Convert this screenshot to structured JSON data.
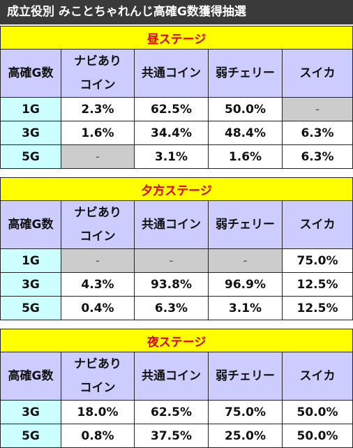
{
  "title": "成立役別 みことちゃれんじ高確G数獲得抽選",
  "columns": [
    "高確G数",
    "ナビあり\nコイン",
    "共通コイン",
    "弱チェリー",
    "スイカ"
  ],
  "sections": [
    {
      "name": "昼ステージ",
      "rows": [
        {
          "label": "1G",
          "cells": [
            "2.3%",
            "62.5%",
            "50.0%",
            "-"
          ],
          "gray": [
            false,
            false,
            false,
            true
          ]
        },
        {
          "label": "3G",
          "cells": [
            "1.6%",
            "34.4%",
            "48.4%",
            "6.3%"
          ],
          "gray": [
            false,
            false,
            false,
            false
          ]
        },
        {
          "label": "5G",
          "cells": [
            "-",
            "3.1%",
            "1.6%",
            "6.3%"
          ],
          "gray": [
            true,
            false,
            false,
            false
          ]
        }
      ]
    },
    {
      "name": "夕方ステージ",
      "rows": [
        {
          "label": "1G",
          "cells": [
            "-",
            "-",
            "-",
            "75.0%"
          ],
          "gray": [
            true,
            true,
            true,
            false
          ]
        },
        {
          "label": "3G",
          "cells": [
            "4.3%",
            "93.8%",
            "96.9%",
            "12.5%"
          ],
          "gray": [
            false,
            false,
            false,
            false
          ]
        },
        {
          "label": "5G",
          "cells": [
            "0.4%",
            "6.3%",
            "3.1%",
            "12.5%"
          ],
          "gray": [
            false,
            false,
            false,
            false
          ]
        }
      ]
    },
    {
      "name": "夜ステージ",
      "rows": [
        {
          "label": "3G",
          "cells": [
            "18.0%",
            "62.5%",
            "75.0%",
            "50.0%"
          ],
          "gray": [
            false,
            false,
            false,
            false
          ]
        },
        {
          "label": "5G",
          "cells": [
            "0.8%",
            "37.5%",
            "25.0%",
            "50.0%"
          ],
          "gray": [
            false,
            false,
            false,
            false
          ]
        }
      ]
    }
  ]
}
